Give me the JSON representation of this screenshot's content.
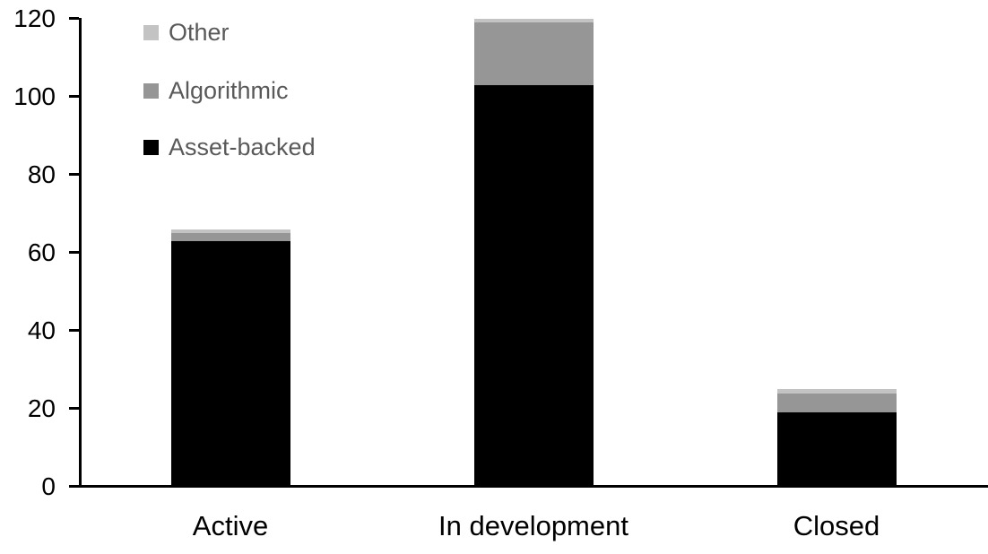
{
  "chart_data": {
    "type": "bar",
    "stacked": true,
    "title": "",
    "xlabel": "",
    "ylabel": "",
    "categories": [
      "Active",
      "In development",
      "Closed"
    ],
    "series": [
      {
        "name": "Asset-backed",
        "color": "#000000",
        "values": [
          63,
          103,
          19
        ]
      },
      {
        "name": "Algorithmic",
        "color": "#969696",
        "values": [
          2,
          16,
          5
        ]
      },
      {
        "name": "Other",
        "color": "#c3c3c3",
        "values": [
          1,
          1,
          1
        ]
      }
    ],
    "stack_totals": [
      66,
      120,
      25
    ],
    "ylim": [
      0,
      120
    ],
    "yticks": [
      0,
      20,
      40,
      60,
      80,
      100,
      120
    ],
    "grid": false,
    "legend_position": "top-left",
    "legend_order_top_to_bottom": [
      "Other",
      "Algorithmic",
      "Asset-backed"
    ],
    "axis_color": "#000000",
    "legend_text_color": "#595959",
    "background_color": "#ffffff"
  },
  "legend": {
    "items": [
      {
        "label": "Other",
        "color": "#c3c3c3"
      },
      {
        "label": "Algorithmic",
        "color": "#969696"
      },
      {
        "label": "Asset-backed",
        "color": "#000000"
      }
    ]
  }
}
